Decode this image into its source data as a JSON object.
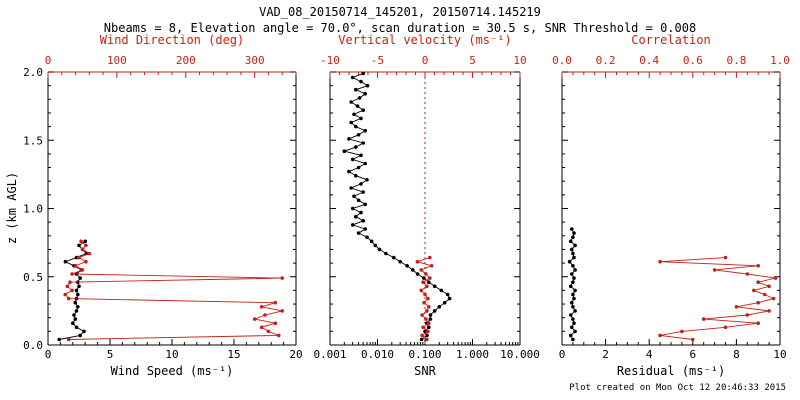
{
  "title": "VAD_08_20150714_145201, 20150714.145219",
  "subtitle": "Nbeams = 8, Elevation angle = 70.0°, scan duration = 30.5 s, SNR Threshold = 0.008",
  "footer": "Plot created on Mon Oct 12 20:46:33 2015",
  "colors": {
    "axis": "#000000",
    "accent": "#c22218",
    "background": "#ffffff"
  },
  "chart_data": {
    "type": "line",
    "title": "VAD_08_20150714_145201, 20150714.145219",
    "legend": "none",
    "grid": false,
    "panels": [
      {
        "id": "wind",
        "ylabel": "z (km AGL)",
        "y": {
          "min": 0,
          "max": 2,
          "minor": 0.1,
          "showLabels": true,
          "ticks": [
            {
              "v": 0,
              "label": "0.0"
            },
            {
              "v": 0.5,
              "label": "0.5"
            },
            {
              "v": 1,
              "label": "1.0"
            },
            {
              "v": 1.5,
              "label": "1.5"
            },
            {
              "v": 2,
              "label": "2.0"
            }
          ]
        },
        "bottom": {
          "label": "Wind Speed (ms⁻¹)",
          "min": 0,
          "max": 20,
          "minor": 1,
          "log": false,
          "ticks": [
            {
              "v": 0,
              "label": "0"
            },
            {
              "v": 5,
              "label": "5"
            },
            {
              "v": 10,
              "label": "10"
            },
            {
              "v": 15,
              "label": "15"
            },
            {
              "v": 20,
              "label": "20"
            }
          ]
        },
        "top": {
          "label": "Wind Direction (deg)",
          "min": 0,
          "max": 360,
          "minor": 20,
          "log": false,
          "ticks": [
            {
              "v": 0,
              "label": "0"
            },
            {
              "v": 100,
              "label": "100"
            },
            {
              "v": 200,
              "label": "200"
            },
            {
              "v": 300,
              "label": "300"
            }
          ]
        },
        "series": [
          {
            "name": "wind-speed",
            "axis": "bottom",
            "color": "#000000",
            "z": [
              0.04,
              0.07,
              0.1,
              0.13,
              0.16,
              0.19,
              0.22,
              0.25,
              0.28,
              0.31,
              0.34,
              0.37,
              0.4,
              0.43,
              0.46,
              0.49,
              0.52,
              0.55,
              0.58,
              0.61,
              0.64,
              0.67,
              0.7,
              0.73,
              0.76
            ],
            "v": [
              0.9,
              2.6,
              2.9,
              2.3,
              2.0,
              2.2,
              2.1,
              2.3,
              2.4,
              2.2,
              2.3,
              2.4,
              2.3,
              2.5,
              2.4,
              2.6,
              2.3,
              2.7,
              2.1,
              1.4,
              2.3,
              3.1,
              2.8,
              2.5,
              3.0
            ]
          },
          {
            "name": "wind-direction",
            "axis": "top",
            "color": "#c22218",
            "z": [
              0.04,
              0.07,
              0.1,
              0.13,
              0.16,
              0.19,
              0.22,
              0.25,
              0.28,
              0.31,
              0.34,
              0.37,
              0.4,
              0.43,
              0.46,
              0.49,
              0.52,
              0.55,
              0.58,
              0.61,
              0.64,
              0.67,
              0.7,
              0.73,
              0.76
            ],
            "v": [
              30,
              335,
              320,
              310,
              330,
              300,
              315,
              340,
              310,
              330,
              30,
              25,
              35,
              28,
              32,
              340,
              35,
              50,
              40,
              55,
              45,
              60,
              50,
              55,
              48
            ]
          }
        ]
      },
      {
        "id": "snr",
        "ylabel": "",
        "y": {
          "min": 0,
          "max": 2,
          "minor": 0.1,
          "showLabels": false,
          "ticks": [
            {
              "v": 0,
              "label": "0.0"
            },
            {
              "v": 0.5,
              "label": "0.5"
            },
            {
              "v": 1,
              "label": "1.0"
            },
            {
              "v": 1.5,
              "label": "1.5"
            },
            {
              "v": 2,
              "label": "2.0"
            }
          ]
        },
        "bottom": {
          "label": "SNR",
          "min": 0.001,
          "max": 10,
          "log": true,
          "ticks": [
            {
              "v": 0.001,
              "label": "0.001"
            },
            {
              "v": 0.01,
              "label": "0.010"
            },
            {
              "v": 0.1,
              "label": "0.100"
            },
            {
              "v": 1,
              "label": "1.000"
            },
            {
              "v": 10,
              "label": "10.000"
            }
          ]
        },
        "top": {
          "label": "Vertical velocity (ms⁻¹)",
          "min": -10,
          "max": 10,
          "minor": 1,
          "log": false,
          "ticks": [
            {
              "v": -10,
              "label": "-10"
            },
            {
              "v": -5,
              "label": "-5"
            },
            {
              "v": 0,
              "label": "0"
            },
            {
              "v": 5,
              "label": "5"
            },
            {
              "v": 10,
              "label": "10"
            }
          ]
        },
        "refline": {
          "axis": "top",
          "v": 0,
          "style": "dotted",
          "color": "#c22218"
        },
        "series": [
          {
            "name": "snr-profile",
            "axis": "bottom",
            "color": "#000000",
            "z": [
              0.04,
              0.07,
              0.1,
              0.13,
              0.16,
              0.19,
              0.22,
              0.25,
              0.28,
              0.31,
              0.34,
              0.37,
              0.4,
              0.43,
              0.46,
              0.49,
              0.52,
              0.55,
              0.58,
              0.61,
              0.64,
              0.67,
              0.7,
              0.73,
              0.76,
              0.79,
              0.82,
              0.85,
              0.88,
              0.91,
              0.94,
              0.97,
              1.0,
              1.03,
              1.06,
              1.09,
              1.12,
              1.15,
              1.18,
              1.21,
              1.24,
              1.27,
              1.3,
              1.33,
              1.36,
              1.39,
              1.42,
              1.45,
              1.48,
              1.51,
              1.54,
              1.57,
              1.6,
              1.63,
              1.66,
              1.69,
              1.72,
              1.75,
              1.78,
              1.81,
              1.84,
              1.87,
              1.9,
              1.93,
              1.96,
              1.99
            ],
            "v": [
              0.085,
              0.11,
              0.1,
              0.12,
              0.11,
              0.13,
              0.13,
              0.16,
              0.2,
              0.26,
              0.33,
              0.3,
              0.22,
              0.16,
              0.12,
              0.095,
              0.07,
              0.055,
              0.042,
              0.03,
              0.022,
              0.015,
              0.011,
              0.009,
              0.0075,
              0.006,
              0.004,
              0.0055,
              0.003,
              0.005,
              0.0035,
              0.0045,
              0.003,
              0.0055,
              0.004,
              0.0032,
              0.005,
              0.0028,
              0.0045,
              0.006,
              0.0035,
              0.0025,
              0.004,
              0.0055,
              0.003,
              0.0045,
              0.002,
              0.0035,
              0.005,
              0.0025,
              0.004,
              0.0055,
              0.0035,
              0.0028,
              0.0045,
              0.0032,
              0.005,
              0.0038,
              0.0028,
              0.0042,
              0.0055,
              0.0035,
              0.0062,
              0.0045,
              0.003,
              0.005
            ]
          },
          {
            "name": "vertical-velocity",
            "axis": "top",
            "color": "#c22218",
            "z": [
              0.04,
              0.07,
              0.1,
              0.13,
              0.16,
              0.19,
              0.22,
              0.25,
              0.28,
              0.31,
              0.34,
              0.37,
              0.4,
              0.43,
              0.46,
              0.49,
              0.52,
              0.55,
              0.58,
              0.61,
              0.64
            ],
            "v": [
              0.2,
              -0.3,
              0.3,
              -0.2,
              0.4,
              0.1,
              -0.3,
              0.2,
              0.4,
              -0.1,
              0.3,
              0.0,
              -0.4,
              0.2,
              -0.2,
              0.5,
              0.1,
              -0.4,
              0.7,
              -0.8,
              0.5
            ]
          }
        ]
      },
      {
        "id": "residual",
        "ylabel": "",
        "y": {
          "min": 0,
          "max": 2,
          "minor": 0.1,
          "showLabels": false,
          "ticks": [
            {
              "v": 0,
              "label": "0.0"
            },
            {
              "v": 0.5,
              "label": "0.5"
            },
            {
              "v": 1,
              "label": "1.0"
            },
            {
              "v": 1.5,
              "label": "1.5"
            },
            {
              "v": 2,
              "label": "2.0"
            }
          ]
        },
        "bottom": {
          "label": "Residual (ms⁻¹)",
          "min": 0,
          "max": 10,
          "minor": 0.5,
          "log": false,
          "ticks": [
            {
              "v": 0,
              "label": "0"
            },
            {
              "v": 2,
              "label": "2"
            },
            {
              "v": 4,
              "label": "4"
            },
            {
              "v": 6,
              "label": "6"
            },
            {
              "v": 8,
              "label": "8"
            },
            {
              "v": 10,
              "label": "10"
            }
          ]
        },
        "top": {
          "label": "Correlation",
          "min": 0,
          "max": 1,
          "minor": 0.05,
          "log": false,
          "ticks": [
            {
              "v": 0,
              "label": "0.0"
            },
            {
              "v": 0.2,
              "label": "0.2"
            },
            {
              "v": 0.4,
              "label": "0.4"
            },
            {
              "v": 0.6,
              "label": "0.6"
            },
            {
              "v": 0.8,
              "label": "0.8"
            },
            {
              "v": 1,
              "label": "1.0"
            }
          ]
        },
        "series": [
          {
            "name": "residual",
            "axis": "bottom",
            "color": "#000000",
            "z": [
              0.04,
              0.07,
              0.1,
              0.13,
              0.16,
              0.19,
              0.22,
              0.25,
              0.28,
              0.31,
              0.34,
              0.37,
              0.4,
              0.43,
              0.46,
              0.49,
              0.52,
              0.55,
              0.58,
              0.61,
              0.64,
              0.67,
              0.7,
              0.73,
              0.76,
              0.79,
              0.82,
              0.85
            ],
            "v": [
              0.5,
              0.4,
              0.6,
              0.45,
              0.55,
              0.5,
              0.4,
              0.6,
              0.5,
              0.45,
              0.55,
              0.5,
              0.6,
              0.4,
              0.5,
              0.55,
              0.45,
              0.6,
              0.5,
              0.35,
              0.55,
              0.5,
              0.45,
              0.6,
              0.4,
              0.5,
              0.55,
              0.45
            ]
          },
          {
            "name": "correlation",
            "axis": "top",
            "color": "#c22218",
            "z": [
              0.04,
              0.07,
              0.1,
              0.13,
              0.16,
              0.19,
              0.22,
              0.25,
              0.28,
              0.31,
              0.34,
              0.37,
              0.4,
              0.43,
              0.46,
              0.49,
              0.52,
              0.55,
              0.58,
              0.61,
              0.64
            ],
            "v": [
              0.6,
              0.45,
              0.55,
              0.75,
              0.9,
              0.65,
              0.85,
              0.95,
              0.8,
              0.9,
              0.97,
              0.93,
              0.88,
              0.95,
              0.9,
              0.98,
              0.85,
              0.7,
              0.9,
              0.45,
              0.75
            ]
          }
        ]
      }
    ]
  }
}
